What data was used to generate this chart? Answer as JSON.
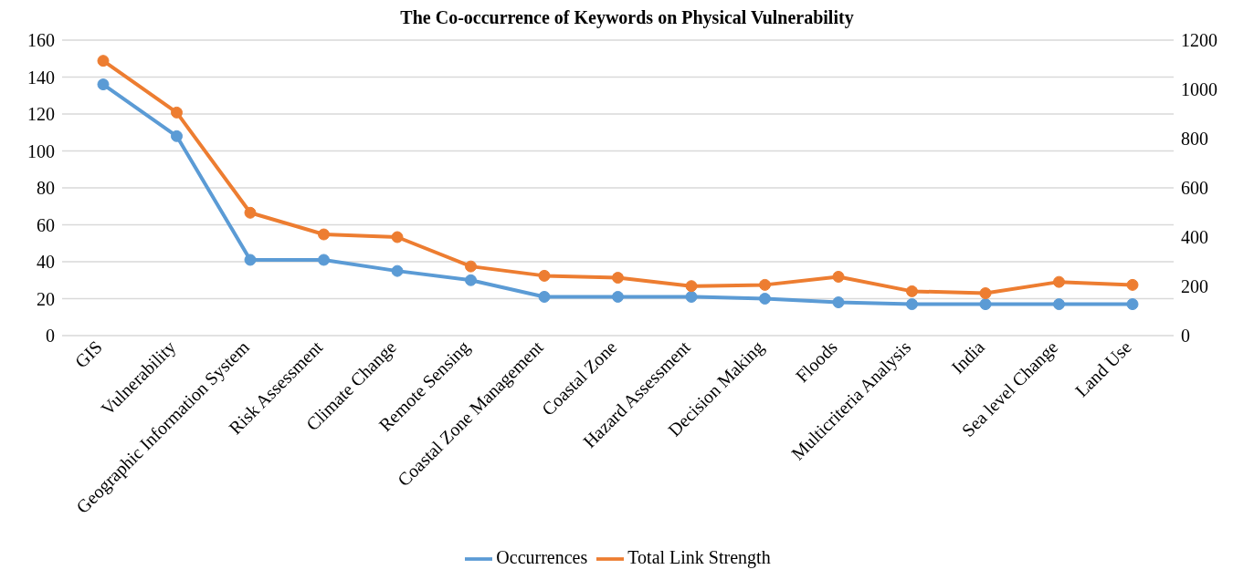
{
  "chart_data": {
    "type": "line",
    "title": "The Co-occurrence of Keywords on Physical Vulnerability",
    "categories": [
      "GIS",
      "Vulnerability",
      "Geographic Information System",
      "Risk Assessment",
      "Climate Change",
      "Remote Sensing",
      "Coastal Zone Management",
      "Coastal Zone",
      "Hazard Assessment",
      "Decision Making",
      "Floods",
      "Multicriteria Analysis",
      "India",
      "Sea level Change",
      "Land Use"
    ],
    "series": [
      {
        "name": "Occurrences",
        "color": "#5b9bd5",
        "values": [
          136,
          108,
          41,
          41,
          35,
          30,
          21,
          21,
          21,
          20,
          18,
          17,
          17,
          17,
          17
        ]
      },
      {
        "name": "Total Link Strength",
        "color": "#ed7d31",
        "axis": "y2",
        "values": [
          1116,
          906,
          499,
          411,
          400,
          281,
          243,
          235,
          201,
          206,
          239,
          180,
          172,
          218,
          206
        ]
      }
    ],
    "ylim": [
      0,
      160
    ],
    "yticks": [
      0,
      20,
      40,
      60,
      80,
      100,
      120,
      140,
      160
    ],
    "y2lim": [
      0,
      1200
    ],
    "y2ticks": [
      0,
      200,
      400,
      600,
      800,
      1000,
      1200
    ],
    "grid": "y",
    "legend": "bottom",
    "marker": "circle",
    "line_style": "solid"
  }
}
